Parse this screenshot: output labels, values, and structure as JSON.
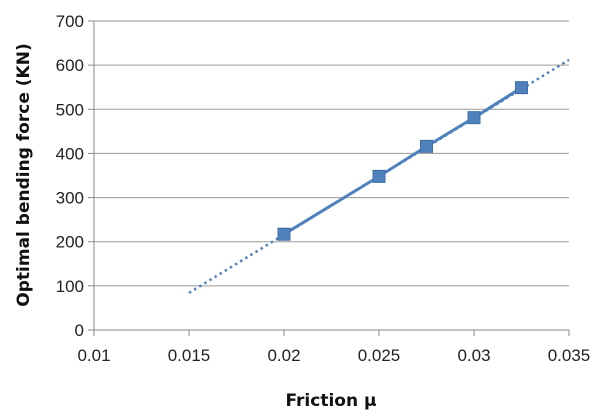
{
  "chart_data": {
    "type": "scatter",
    "title": "",
    "xlabel": "Friction μ",
    "ylabel": "Optimal bending force (KN)",
    "xlim": [
      0.01,
      0.035
    ],
    "ylim": [
      0,
      700
    ],
    "x_ticks": [
      "0.01",
      "0.015",
      "0.02",
      "0.025",
      "0.03",
      "0.035"
    ],
    "y_ticks": [
      "0",
      "100",
      "200",
      "300",
      "400",
      "500",
      "600",
      "700"
    ],
    "grid": "horizontal",
    "legend": "none",
    "series": [
      {
        "x": [
          0.02,
          0.025,
          0.0275,
          0.03,
          0.0325
        ],
        "y": [
          217,
          348,
          416,
          481,
          549
        ],
        "marker": "square",
        "color": "#4F81BD"
      }
    ],
    "trendline": {
      "kind": "linear",
      "style": "dotted",
      "color": "#4F81BD",
      "x_range": [
        0.015,
        0.035
      ],
      "y_range": [
        84,
        612
      ]
    }
  }
}
